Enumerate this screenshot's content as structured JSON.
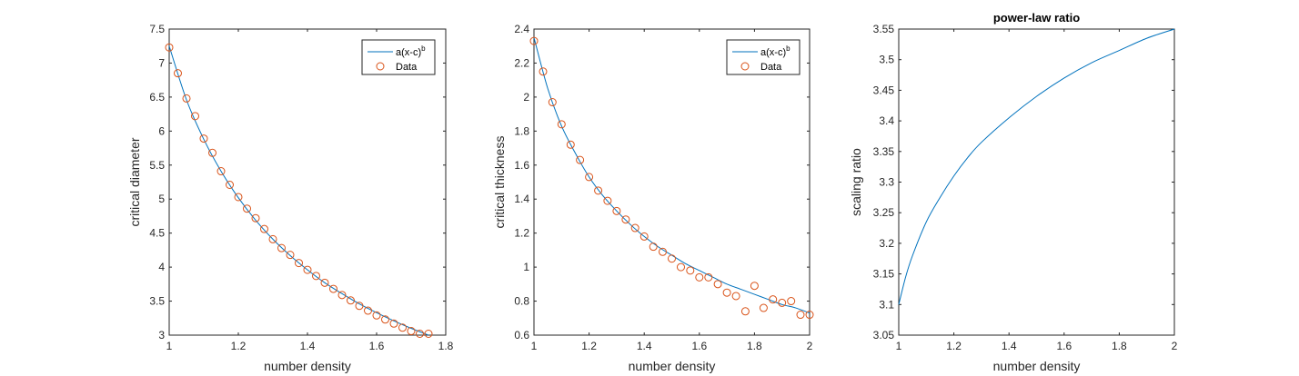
{
  "chart_data": [
    {
      "type": "scatter",
      "title": "",
      "xlabel": "number density",
      "ylabel": "critical diameter",
      "xlim": [
        1,
        1.8
      ],
      "ylim": [
        3,
        7.5
      ],
      "xticks": [
        "1",
        "1.2",
        "1.4",
        "1.6",
        "1.8"
      ],
      "yticks": [
        "3",
        "3.5",
        "4",
        "4.5",
        "5",
        "5.5",
        "6",
        "6.5",
        "7",
        "7.5"
      ],
      "legend": {
        "placement": "top-right",
        "entries": [
          {
            "label": "a(x-c)",
            "sup": "b"
          },
          {
            "label": "Data"
          }
        ]
      },
      "series": [
        {
          "name": "a(x-c)^b",
          "kind": "line",
          "color": "#0072BD",
          "x": [
            1,
            1.05,
            1.1,
            1.15,
            1.2,
            1.25,
            1.3,
            1.35,
            1.4,
            1.45,
            1.5,
            1.55,
            1.6,
            1.65,
            1.7,
            1.75
          ],
          "y": [
            7.25,
            6.46,
            5.88,
            5.41,
            5.02,
            4.69,
            4.41,
            4.17,
            3.96,
            3.77,
            3.61,
            3.46,
            3.33,
            3.21,
            3.1,
            3.0
          ]
        },
        {
          "name": "Data",
          "kind": "scatter",
          "color": "#D95319",
          "x": [
            1,
            1.025,
            1.05,
            1.075,
            1.1,
            1.125,
            1.15,
            1.175,
            1.2,
            1.225,
            1.25,
            1.275,
            1.3,
            1.325,
            1.35,
            1.375,
            1.4,
            1.425,
            1.45,
            1.475,
            1.5,
            1.525,
            1.55,
            1.575,
            1.6,
            1.625,
            1.65,
            1.675,
            1.7,
            1.725,
            1.75
          ],
          "y": [
            7.23,
            6.85,
            6.48,
            6.22,
            5.89,
            5.68,
            5.41,
            5.21,
            5.03,
            4.86,
            4.72,
            4.56,
            4.41,
            4.28,
            4.18,
            4.06,
            3.96,
            3.87,
            3.77,
            3.68,
            3.59,
            3.51,
            3.43,
            3.36,
            3.29,
            3.23,
            3.17,
            3.11,
            3.06,
            3.02,
            3.02
          ]
        }
      ]
    },
    {
      "type": "scatter",
      "title": "",
      "xlabel": "number density",
      "ylabel": "critical thickness",
      "xlim": [
        1,
        2
      ],
      "ylim": [
        0.6,
        2.4
      ],
      "xticks": [
        "1",
        "1.2",
        "1.4",
        "1.6",
        "1.8",
        "2"
      ],
      "yticks": [
        "0.6",
        "0.8",
        "1",
        "1.2",
        "1.4",
        "1.6",
        "1.8",
        "2",
        "2.2",
        "2.4"
      ],
      "legend": {
        "placement": "top-right",
        "entries": [
          {
            "label": "a(x-c)",
            "sup": "b"
          },
          {
            "label": "Data"
          }
        ]
      },
      "series": [
        {
          "name": "a(x-c)^b",
          "kind": "line",
          "color": "#0072BD",
          "x": [
            1,
            1.05,
            1.1,
            1.15,
            1.2,
            1.25,
            1.3,
            1.35,
            1.4,
            1.45,
            1.5,
            1.55,
            1.6,
            1.65,
            1.7,
            1.75,
            1.8,
            1.85,
            1.9,
            1.95,
            2
          ],
          "y": [
            2.35,
            2.05,
            1.83,
            1.67,
            1.53,
            1.42,
            1.33,
            1.25,
            1.18,
            1.12,
            1.07,
            1.02,
            0.98,
            0.94,
            0.9,
            0.87,
            0.84,
            0.81,
            0.78,
            0.76,
            0.73
          ]
        },
        {
          "name": "Data",
          "kind": "scatter",
          "color": "#D95319",
          "x": [
            1,
            1.033,
            1.067,
            1.1,
            1.133,
            1.167,
            1.2,
            1.233,
            1.267,
            1.3,
            1.333,
            1.367,
            1.4,
            1.433,
            1.467,
            1.5,
            1.533,
            1.567,
            1.6,
            1.633,
            1.667,
            1.7,
            1.733,
            1.767,
            1.8,
            1.833,
            1.867,
            1.9,
            1.933,
            1.967,
            2
          ],
          "y": [
            2.33,
            2.15,
            1.97,
            1.84,
            1.72,
            1.63,
            1.53,
            1.45,
            1.39,
            1.33,
            1.28,
            1.23,
            1.18,
            1.12,
            1.09,
            1.05,
            1.0,
            0.98,
            0.94,
            0.94,
            0.9,
            0.85,
            0.83,
            0.74,
            0.89,
            0.76,
            0.81,
            0.79,
            0.8,
            0.72,
            0.72
          ]
        }
      ]
    },
    {
      "type": "line",
      "title": "power-law ratio",
      "xlabel": "number density",
      "ylabel": "scaling ratio",
      "xlim": [
        1,
        2
      ],
      "ylim": [
        3.05,
        3.55
      ],
      "xticks": [
        "1",
        "1.2",
        "1.4",
        "1.6",
        "1.8",
        "2"
      ],
      "yticks": [
        "3.05",
        "3.1",
        "3.15",
        "3.2",
        "3.25",
        "3.3",
        "3.35",
        "3.4",
        "3.45",
        "3.5",
        "3.55"
      ],
      "series": [
        {
          "kind": "line",
          "color": "#0072BD",
          "x": [
            1,
            1.025,
            1.05,
            1.1,
            1.15,
            1.2,
            1.25,
            1.3,
            1.4,
            1.5,
            1.6,
            1.7,
            1.8,
            1.9,
            2
          ],
          "y": [
            3.1,
            3.145,
            3.18,
            3.235,
            3.275,
            3.31,
            3.34,
            3.365,
            3.405,
            3.44,
            3.47,
            3.495,
            3.515,
            3.535,
            3.55
          ]
        }
      ]
    }
  ]
}
